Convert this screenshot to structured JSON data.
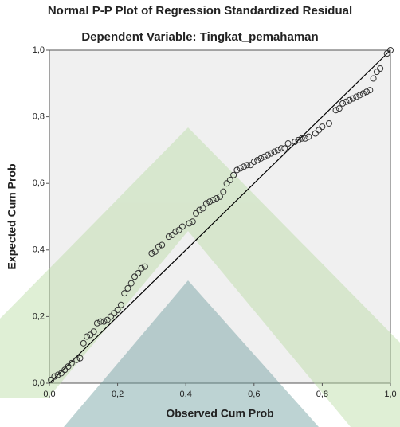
{
  "chart_data": {
    "type": "scatter",
    "title": "Normal P-P Plot of Regression Standardized Residual",
    "subtitle": "Dependent Variable: Tingkat_pemahaman",
    "x_label": "Observed Cum Prob",
    "y_label": "Expected Cum Prob",
    "x": [
      0.005,
      0.015,
      0.025,
      0.035,
      0.045,
      0.055,
      0.065,
      0.08,
      0.09,
      0.1,
      0.11,
      0.12,
      0.13,
      0.14,
      0.15,
      0.16,
      0.17,
      0.18,
      0.19,
      0.2,
      0.21,
      0.22,
      0.23,
      0.24,
      0.25,
      0.26,
      0.27,
      0.28,
      0.3,
      0.31,
      0.32,
      0.33,
      0.35,
      0.36,
      0.37,
      0.38,
      0.39,
      0.41,
      0.42,
      0.43,
      0.44,
      0.45,
      0.46,
      0.47,
      0.48,
      0.49,
      0.5,
      0.51,
      0.52,
      0.53,
      0.54,
      0.55,
      0.56,
      0.57,
      0.58,
      0.59,
      0.6,
      0.61,
      0.62,
      0.63,
      0.64,
      0.65,
      0.66,
      0.67,
      0.68,
      0.69,
      0.7,
      0.72,
      0.73,
      0.74,
      0.75,
      0.76,
      0.78,
      0.79,
      0.8,
      0.82,
      0.84,
      0.85,
      0.86,
      0.87,
      0.88,
      0.89,
      0.9,
      0.91,
      0.92,
      0.93,
      0.94,
      0.95,
      0.96,
      0.97,
      0.99,
      1.0
    ],
    "values": [
      0.01,
      0.02,
      0.025,
      0.03,
      0.04,
      0.05,
      0.06,
      0.07,
      0.075,
      0.12,
      0.14,
      0.145,
      0.155,
      0.18,
      0.185,
      0.185,
      0.19,
      0.2,
      0.21,
      0.22,
      0.235,
      0.27,
      0.285,
      0.3,
      0.32,
      0.33,
      0.345,
      0.35,
      0.39,
      0.395,
      0.41,
      0.415,
      0.44,
      0.445,
      0.455,
      0.46,
      0.47,
      0.48,
      0.485,
      0.51,
      0.52,
      0.525,
      0.54,
      0.545,
      0.55,
      0.555,
      0.56,
      0.575,
      0.6,
      0.61,
      0.625,
      0.64,
      0.645,
      0.65,
      0.655,
      0.655,
      0.665,
      0.67,
      0.675,
      0.68,
      0.685,
      0.69,
      0.695,
      0.7,
      0.705,
      0.705,
      0.72,
      0.725,
      0.73,
      0.735,
      0.735,
      0.74,
      0.75,
      0.76,
      0.77,
      0.78,
      0.82,
      0.825,
      0.84,
      0.845,
      0.85,
      0.855,
      0.86,
      0.865,
      0.87,
      0.875,
      0.88,
      0.915,
      0.935,
      0.945,
      0.99,
      1.0
    ],
    "marker_color": "#333333",
    "line_color": "#000000",
    "background": "#f0f0f0",
    "xlim": [
      0,
      1
    ],
    "ylim": [
      0,
      1
    ],
    "xticks": [
      {
        "value": 0,
        "label": "0,0"
      },
      {
        "value": 0.2,
        "label": "0,2"
      },
      {
        "value": 0.4,
        "label": "0,4"
      },
      {
        "value": 0.6,
        "label": "0,6"
      },
      {
        "value": 0.8,
        "label": "0,8"
      },
      {
        "value": 1,
        "label": "1,0"
      }
    ],
    "yticks": [
      {
        "value": 0,
        "label": "0,0"
      },
      {
        "value": 0.2,
        "label": "0,2"
      },
      {
        "value": 0.4,
        "label": "0,4"
      },
      {
        "value": 0.6,
        "label": "0,6"
      },
      {
        "value": 0.8,
        "label": "0,8"
      },
      {
        "value": 1,
        "label": "1,0"
      }
    ],
    "diagonal": true
  }
}
